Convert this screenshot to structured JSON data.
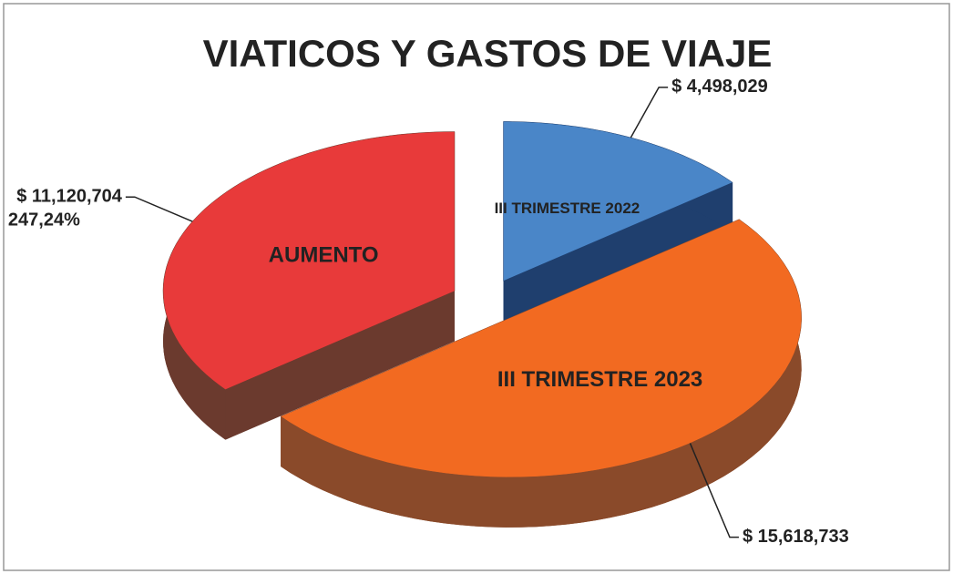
{
  "chart_data": {
    "type": "pie",
    "title": "VIATICOS Y GASTOS DE VIAJE",
    "categories": [
      "III TRIMESTRE 2022",
      "III TRIMESTRE 2023",
      "AUMENTO"
    ],
    "values": [
      4498029,
      15618733,
      11120704
    ],
    "value_labels": [
      "$ 4,498,029",
      "$ 15,618,733",
      "$ 11,120,704"
    ],
    "colors": [
      "#4a86c8",
      "#f26a21",
      "#e83a3a"
    ],
    "side_colors": [
      "#1f3f6e",
      "#8a4a2a",
      "#6b3a2e"
    ],
    "annotation": "247,24%"
  }
}
